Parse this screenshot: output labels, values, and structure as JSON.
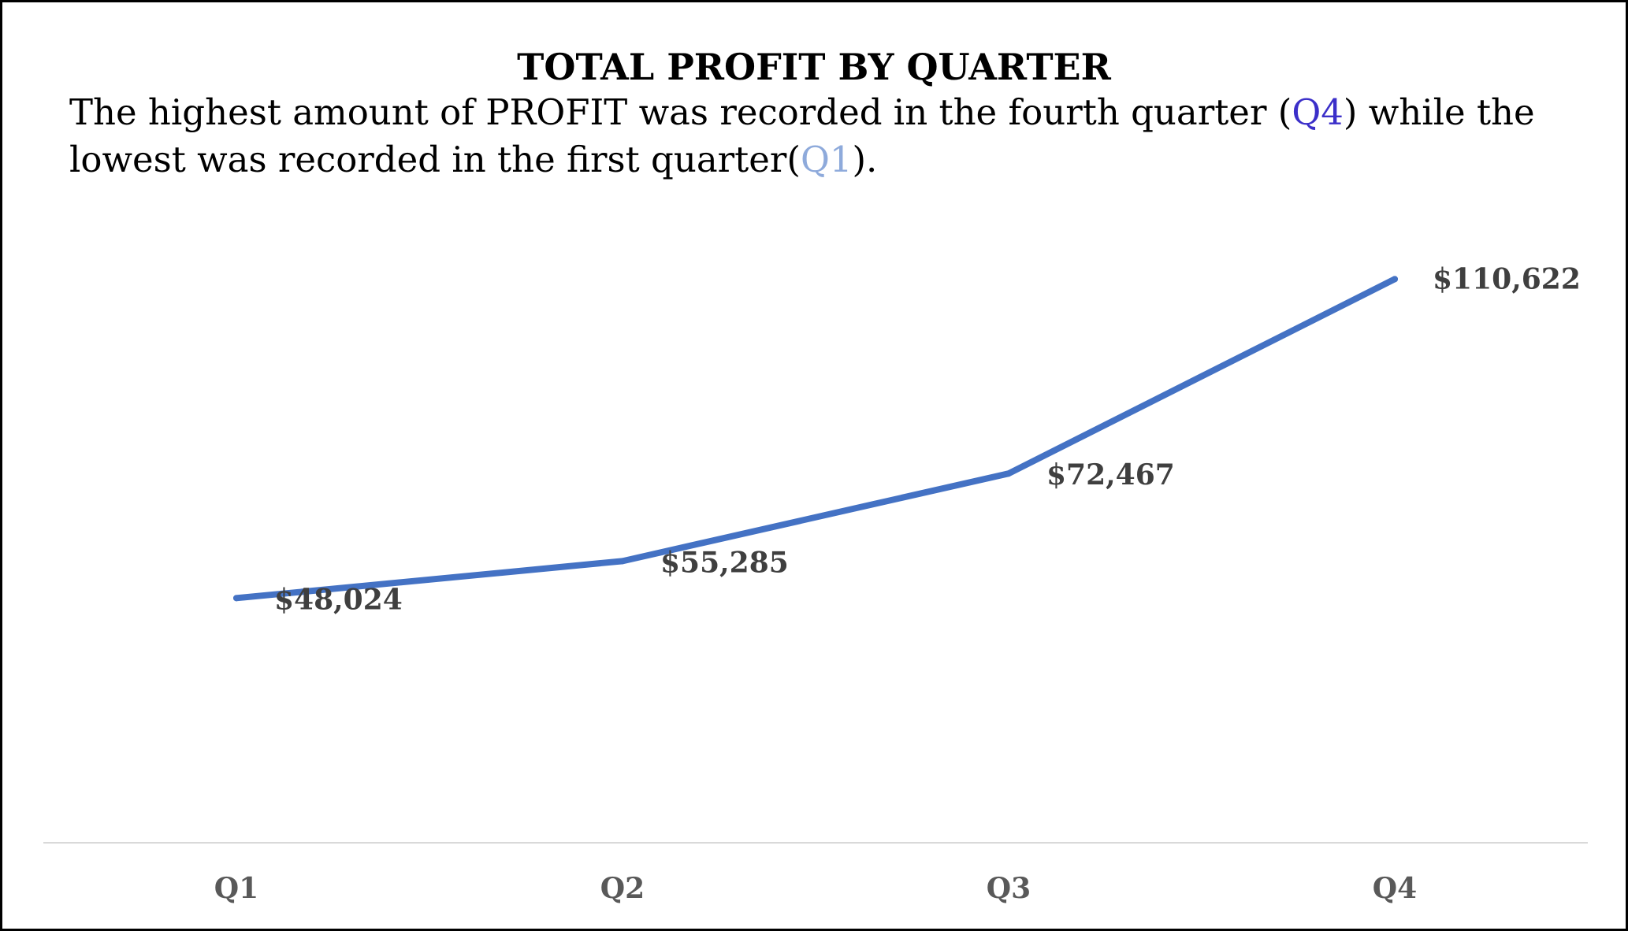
{
  "chart_data": {
    "type": "line",
    "title": "TOTAL PROFIT BY QUARTER",
    "subtitle": {
      "part1": "The highest amount of PROFIT was recorded in the fourth quarter (",
      "hl1": "Q4",
      "part2": ") while the lowest was recorded in the first quarter(",
      "hl2": "Q1",
      "part3": ")."
    },
    "categories": [
      "Q1",
      "Q2",
      "Q3",
      "Q4"
    ],
    "series": [
      {
        "values": [
          48024,
          55285,
          72467,
          110622
        ],
        "labels": [
          "$48,024",
          "$55,285",
          "$72,467",
          "$110,622"
        ],
        "color": "#4472c4"
      }
    ],
    "ylim": [
      0,
      130000
    ],
    "grid": false,
    "colors": {
      "q4_highlight": "#3b2fc9",
      "q1_highlight": "#8eaadb",
      "axis": "#d9d9d9"
    }
  }
}
